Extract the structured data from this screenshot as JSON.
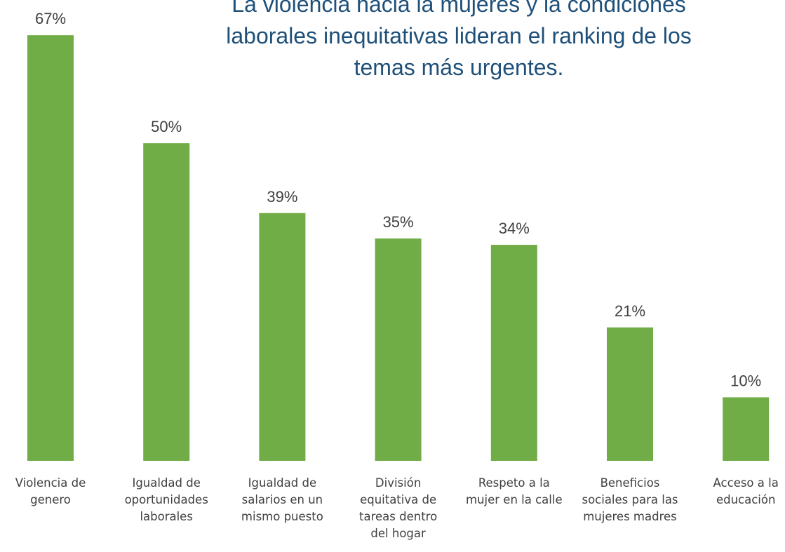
{
  "chart_data": {
    "type": "bar",
    "title": "La violencia hacia la mujeres y la condiciones\nlaborales inequitativas lideran el ranking de los\ntemas más urgentes.",
    "categories": [
      "Violencia de\ngenero",
      "Igualdad de\noportunidades\nlaborales",
      "Igualdad de\nsalarios en un\nmismo puesto",
      "División\nequitativa de\ntareas dentro\ndel hogar",
      "Respeto a la\nmujer en la calle",
      "Beneficios\nsociales para las\nmujeres madres",
      "Acceso a la\neducación"
    ],
    "values": [
      67,
      50,
      39,
      35,
      34,
      21,
      10
    ],
    "value_labels": [
      "67%",
      "50%",
      "39%",
      "35%",
      "34%",
      "21%",
      "10%"
    ],
    "color": "#70ad47",
    "ylim": [
      0,
      70
    ]
  }
}
